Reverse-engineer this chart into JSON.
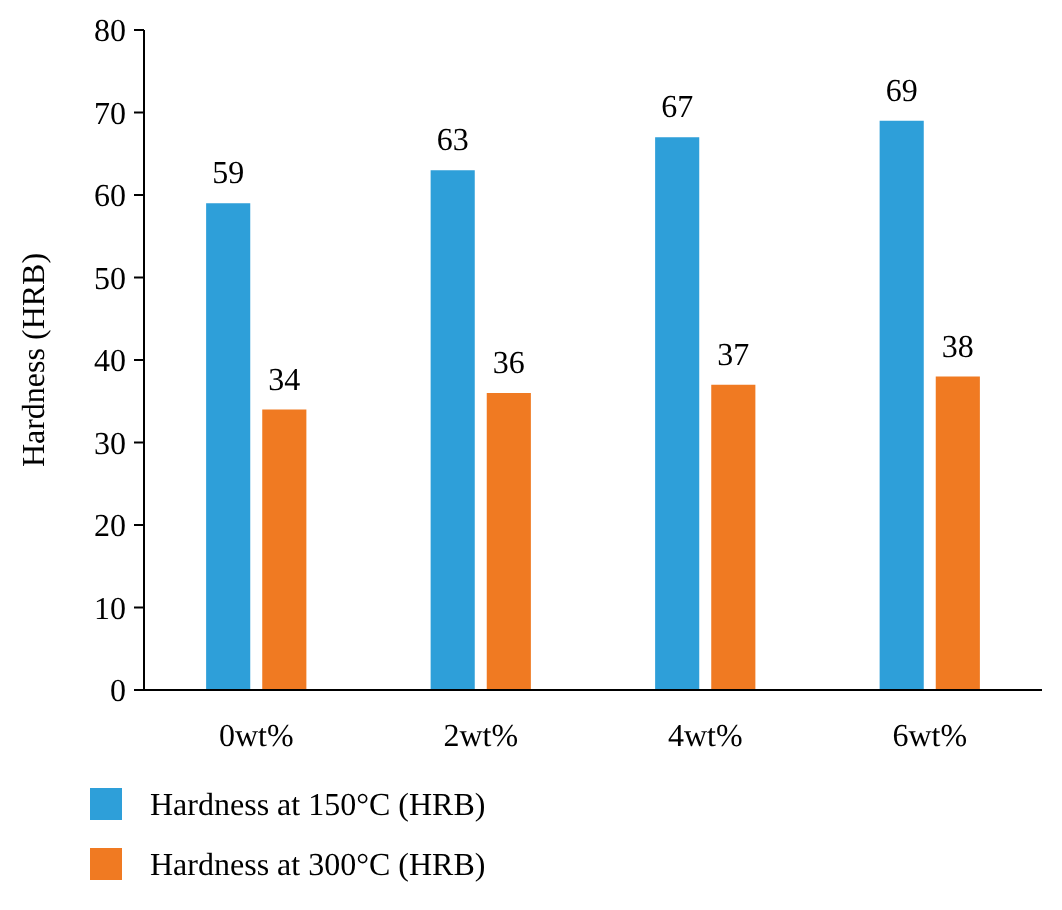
{
  "chart_data": {
    "type": "bar",
    "ylabel": "Hardness (HRB)",
    "categories": [
      "0wt%",
      "2wt%",
      "4wt%",
      "6wt%"
    ],
    "series": [
      {
        "name": "Hardness at 150°C (HRB)",
        "color": "#2e9fd9",
        "values": [
          59,
          63,
          67,
          69
        ]
      },
      {
        "name": "Hardness at 300°C (HRB)",
        "color": "#f07a22",
        "values": [
          34,
          36,
          37,
          38
        ]
      }
    ],
    "ylim": [
      0,
      80
    ],
    "yticks": [
      0,
      10,
      20,
      30,
      40,
      50,
      60,
      70,
      80
    ],
    "data_labels": true,
    "legend": "bottom",
    "grid": false
  }
}
